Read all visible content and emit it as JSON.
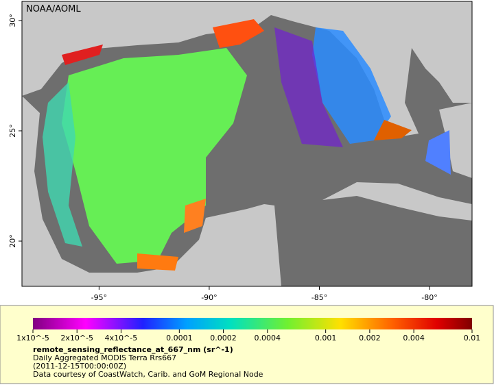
{
  "map": {
    "credit": "NOAA/AOML",
    "lon_lim": [
      -98.5,
      -78.07
    ],
    "lat_lim": [
      17.95,
      30.87
    ],
    "lon_ticks": [
      {
        "value": -95,
        "label": "-95°"
      },
      {
        "value": -90,
        "label": "-90°"
      },
      {
        "value": -85,
        "label": "-85°"
      },
      {
        "value": -80,
        "label": "-80°"
      }
    ],
    "lat_ticks": [
      {
        "value": 20,
        "label": "20°"
      },
      {
        "value": 25,
        "label": "25°"
      },
      {
        "value": 30,
        "label": "30°"
      }
    ]
  },
  "colorbar": {
    "log": true,
    "lim": [
      1e-05,
      0.01
    ],
    "ticks": [
      {
        "value": 1e-05,
        "label": "1x10^-5"
      },
      {
        "value": 2e-05,
        "label": "2x10^-5"
      },
      {
        "value": 4e-05,
        "label": "4x10^-5"
      },
      0.0001,
      0.0002,
      0.0004,
      0.001,
      0.002,
      0.004,
      0.01
    ],
    "variable": "remote_sensing_reflectance_at_667_nm (sr^-1)",
    "product": "Daily Aggregated MODIS Terra Rrs667",
    "time": "(2011-12-15T00:00:00Z)",
    "credit": "Data courtesy of CoastWatch, Carib. and GoM Regional Node"
  }
}
